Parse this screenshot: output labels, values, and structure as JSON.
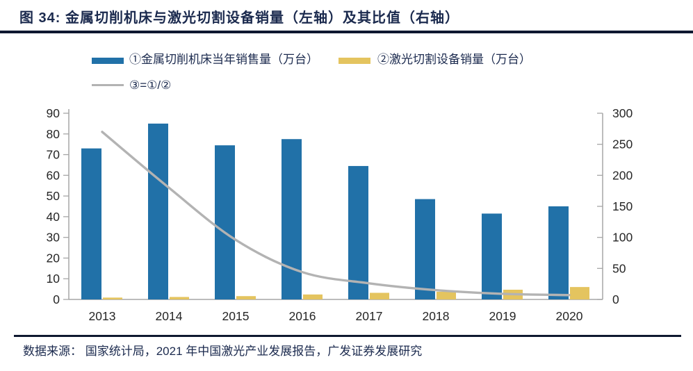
{
  "title": "图 34:  金属切削机床与激光切割设备销量（左轴）及其比值（右轴）",
  "legend": {
    "metal_label": "①金属切削机床当年销售量（万台）",
    "laser_label": "②激光切割设备销量（万台）",
    "ratio_label": "③=①/②"
  },
  "footer": {
    "source_text": "数据来源：  国家统计局，2021 年中国激光产业发展报告，广发证券发展研究"
  },
  "colors": {
    "metal_bar": "#2171A8",
    "laser_bar": "#E4C45F",
    "ratio_line": "#B3B3B3",
    "heading_text": "#1B2A4E",
    "axis_line": "#A6A6A6",
    "tick_text": "#262626"
  },
  "chart_data": {
    "type": "bar",
    "subtype": "grouped-bars-with-line-dual-axis",
    "title": "金属切削机床与激光切割设备销量（左轴）及其比值（右轴）",
    "categories": [
      "2013",
      "2014",
      "2015",
      "2016",
      "2017",
      "2018",
      "2019",
      "2020"
    ],
    "series": [
      {
        "name": "①金属切削机床当年销售量（万台）",
        "type": "bar",
        "axis": "left",
        "values": [
          73,
          85,
          74.5,
          77.5,
          64.5,
          48.5,
          41.5,
          45
        ]
      },
      {
        "name": "②激光切割设备销量（万台）",
        "type": "bar",
        "axis": "left",
        "values": [
          0.9,
          1.2,
          1.6,
          2.4,
          3.2,
          3.7,
          4.7,
          6
        ]
      },
      {
        "name": "③=①/②",
        "type": "line",
        "axis": "right",
        "values": [
          270,
          180,
          96,
          44,
          26,
          15,
          9,
          7
        ]
      }
    ],
    "left_axis": {
      "min": 0,
      "max": 90,
      "tick_step": 10,
      "ticks": [
        0,
        10,
        20,
        30,
        40,
        50,
        60,
        70,
        80,
        90
      ]
    },
    "right_axis": {
      "min": 0,
      "max": 300,
      "tick_step": 50,
      "ticks": [
        0,
        50,
        100,
        150,
        200,
        250,
        300
      ]
    },
    "grid": false,
    "legend_position": "top-left"
  }
}
